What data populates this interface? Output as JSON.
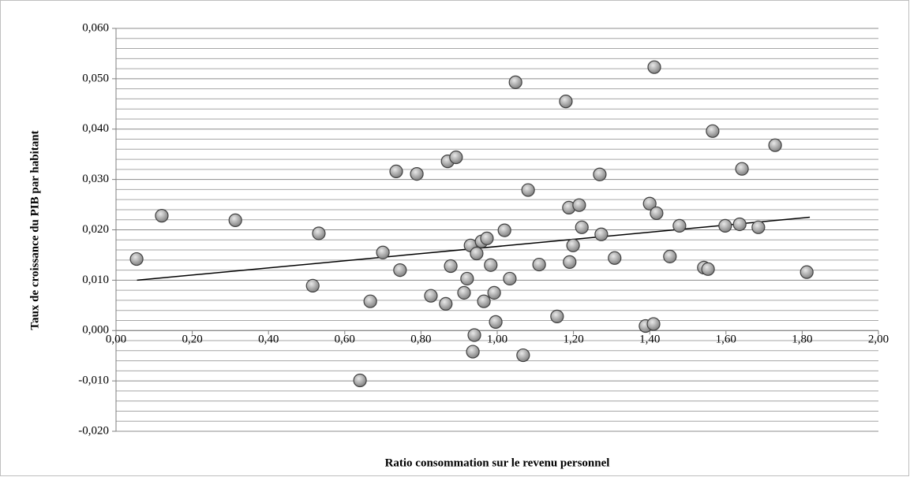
{
  "chart_data": {
    "type": "scatter",
    "x_label": "Ratio consommation sur le revenu personnel",
    "y_label": "Taux de croissance du PIB par habitant",
    "color": "#a6a6a6",
    "grid": true,
    "xlim": [
      0,
      2
    ],
    "ylim": [
      -0.02,
      0.06
    ],
    "xticks": [
      {
        "value": 0,
        "label": "0,00"
      },
      {
        "value": 0.2,
        "label": "0,20"
      },
      {
        "value": 0.4,
        "label": "0,40"
      },
      {
        "value": 0.6,
        "label": "0,60"
      },
      {
        "value": 0.8,
        "label": "0,80"
      },
      {
        "value": 1,
        "label": "1,00"
      },
      {
        "value": 1.2,
        "label": "1,20"
      },
      {
        "value": 1.4,
        "label": "1,40"
      },
      {
        "value": 1.6,
        "label": "1,60"
      },
      {
        "value": 1.8,
        "label": "1,80"
      },
      {
        "value": 2,
        "label": "2,00"
      }
    ],
    "yticks": [
      {
        "value": -0.02,
        "label": "-0,020"
      },
      {
        "value": -0.01,
        "label": "-0,010"
      },
      {
        "value": 0,
        "label": "0,000"
      },
      {
        "value": 0.01,
        "label": "0,010"
      },
      {
        "value": 0.02,
        "label": "0,020"
      },
      {
        "value": 0.03,
        "label": "0,030"
      },
      {
        "value": 0.04,
        "label": "0,040"
      },
      {
        "value": 0.05,
        "label": "0,050"
      },
      {
        "value": 0.06,
        "label": "0,060"
      }
    ],
    "x": [
      0.054,
      0.12,
      0.313,
      0.516,
      0.532,
      0.64,
      0.667,
      0.7,
      0.735,
      0.745,
      0.789,
      0.826,
      0.865,
      0.87,
      0.878,
      0.892,
      0.913,
      0.921,
      0.93,
      0.94,
      0.936,
      0.946,
      0.959,
      0.965,
      0.973,
      0.983,
      0.992,
      0.996,
      1.019,
      1.033,
      1.048,
      1.068,
      1.081,
      1.11,
      1.157,
      1.18,
      1.188,
      1.19,
      1.199,
      1.215,
      1.222,
      1.269,
      1.273,
      1.308,
      1.389,
      1.4,
      1.41,
      1.412,
      1.418,
      1.453,
      1.478,
      1.542,
      1.553,
      1.565,
      1.598,
      1.636,
      1.642,
      1.685,
      1.729,
      1.812
    ],
    "values": [
      0.0142,
      0.0228,
      0.0219,
      0.0089,
      0.0193,
      -0.0099,
      0.0058,
      0.0155,
      0.0316,
      0.012,
      0.0311,
      0.0069,
      0.0053,
      0.0336,
      0.0128,
      0.0344,
      0.0075,
      0.0103,
      0.0169,
      -0.0009,
      -0.0042,
      0.0153,
      0.0177,
      0.0058,
      0.0183,
      0.013,
      0.0075,
      0.0017,
      0.0199,
      0.0103,
      0.0493,
      -0.0049,
      0.0279,
      0.0131,
      0.0028,
      0.0455,
      0.0244,
      0.0136,
      0.0169,
      0.0249,
      0.0205,
      0.031,
      0.0191,
      0.0144,
      0.0009,
      0.0252,
      0.0013,
      0.0523,
      0.0233,
      0.0147,
      0.0208,
      0.0125,
      0.0122,
      0.0396,
      0.0208,
      0.0211,
      0.0321,
      0.0205,
      0.0368,
      0.0116
    ],
    "trendline": {
      "x": [
        0.055,
        1.82
      ],
      "y": [
        0.01,
        0.0225
      ]
    }
  }
}
